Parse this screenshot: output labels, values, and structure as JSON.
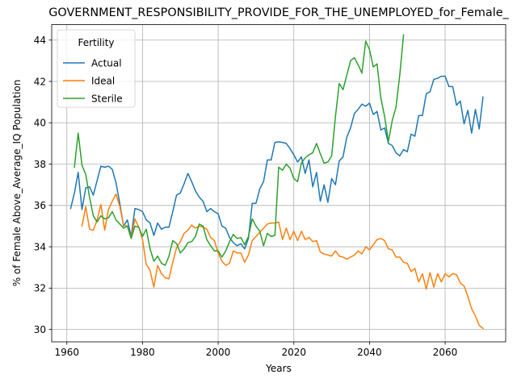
{
  "chart_data": {
    "type": "line",
    "title": "GOVERNMENT_RESPONSIBILITY_PROVIDE_FOR_THE_UNEMPLOYED_for_Female_",
    "xlabel": "Years",
    "ylabel": "% of Female Above_Average_IQ Population",
    "xlim": [
      1956,
      2076
    ],
    "ylim": [
      29.4,
      44.75
    ],
    "xticks": [
      1960,
      1980,
      2000,
      2020,
      2040,
      2060
    ],
    "yticks": [
      30,
      32,
      34,
      36,
      38,
      40,
      42,
      44
    ],
    "grid": true,
    "legend": {
      "title": "Fertility",
      "position": "upper-left"
    },
    "series": [
      {
        "name": "Actual",
        "color": "#1f77b4",
        "x": [
          1961,
          1962,
          1963,
          1964,
          1965,
          1966,
          1967,
          1968,
          1969,
          1970,
          1971,
          1972,
          1973,
          1974,
          1975,
          1976,
          1977,
          1978,
          1979,
          1980,
          1981,
          1982,
          1983,
          1984,
          1985,
          1986,
          1987,
          1988,
          1989,
          1990,
          1991,
          1992,
          1993,
          1994,
          1995,
          1996,
          1997,
          1998,
          1999,
          2000,
          2001,
          2002,
          2003,
          2004,
          2005,
          2006,
          2007,
          2008,
          2009,
          2010,
          2011,
          2012,
          2013,
          2014,
          2015,
          2016,
          2017,
          2018,
          2019,
          2020,
          2021,
          2022,
          2023,
          2024,
          2025,
          2026,
          2027,
          2028,
          2029,
          2030,
          2031,
          2032,
          2033,
          2034,
          2035,
          2036,
          2037,
          2038,
          2039,
          2040,
          2041,
          2042,
          2043,
          2044,
          2045,
          2046,
          2047,
          2048,
          2049,
          2050,
          2051,
          2052,
          2053,
          2054,
          2055,
          2056,
          2057,
          2058,
          2059,
          2060,
          2061,
          2062,
          2063,
          2064,
          2065,
          2066,
          2067,
          2068,
          2069,
          2070
        ],
        "values": [
          35.85,
          36.6,
          37.6,
          35.8,
          36.85,
          36.9,
          36.5,
          37.2,
          37.9,
          37.85,
          37.9,
          37.75,
          37.1,
          36.1,
          35.0,
          35.3,
          34.5,
          35.85,
          35.8,
          35.7,
          35.3,
          35.15,
          34.55,
          35.15,
          34.85,
          34.95,
          34.95,
          35.7,
          36.5,
          36.6,
          37.05,
          37.55,
          37.15,
          36.7,
          36.4,
          36.2,
          35.7,
          35.85,
          35.7,
          35.6,
          35.0,
          34.9,
          34.45,
          34.2,
          34.05,
          34.15,
          33.9,
          34.4,
          36.1,
          36.1,
          36.8,
          37.15,
          38.2,
          38.2,
          39.05,
          39.08,
          39.05,
          39.0,
          38.75,
          38.45,
          38.1,
          38.35,
          37.55,
          38.2,
          36.9,
          37.6,
          36.2,
          37.0,
          36.15,
          37.3,
          37.0,
          38.15,
          38.35,
          39.3,
          39.75,
          40.45,
          40.65,
          40.9,
          40.8,
          40.95,
          40.4,
          40.55,
          39.65,
          39.75,
          39.0,
          38.9,
          38.55,
          38.4,
          38.7,
          38.6,
          39.45,
          39.35,
          40.35,
          40.35,
          41.4,
          41.5,
          42.1,
          42.15,
          42.25,
          42.25,
          41.75,
          41.75,
          40.85,
          41.05,
          39.95,
          40.6,
          39.5,
          40.65,
          39.7,
          41.25
        ]
      },
      {
        "name": "Ideal",
        "color": "#ff7f0e",
        "x": [
          1964,
          1965,
          1966,
          1967,
          1968,
          1969,
          1970,
          1971,
          1972,
          1973,
          1974,
          1975,
          1976,
          1977,
          1978,
          1979,
          1980,
          1981,
          1982,
          1983,
          1984,
          1985,
          1986,
          1987,
          1988,
          1989,
          1990,
          1991,
          1992,
          1993,
          1994,
          1995,
          1996,
          1997,
          1998,
          1999,
          2000,
          2001,
          2002,
          2003,
          2004,
          2005,
          2006,
          2007,
          2008,
          2009,
          2010,
          2011,
          2012,
          2013,
          2014,
          2015,
          2016,
          2017,
          2018,
          2019,
          2020,
          2021,
          2022,
          2023,
          2024,
          2025,
          2026,
          2027,
          2028,
          2029,
          2030,
          2031,
          2032,
          2033,
          2034,
          2035,
          2036,
          2037,
          2038,
          2039,
          2040,
          2041,
          2042,
          2043,
          2044,
          2045,
          2046,
          2047,
          2048,
          2049,
          2050,
          2051,
          2052,
          2053,
          2054,
          2055,
          2056,
          2057,
          2058,
          2059,
          2060,
          2061,
          2062,
          2063,
          2064,
          2065,
          2066,
          2067,
          2068,
          2069,
          2070
        ],
        "values": [
          35.0,
          35.95,
          34.85,
          34.8,
          35.3,
          36.05,
          34.8,
          35.8,
          36.2,
          36.55,
          35.95,
          35.05,
          35.0,
          34.45,
          35.35,
          34.95,
          34.35,
          33.15,
          32.85,
          32.05,
          33.1,
          32.7,
          32.5,
          32.45,
          33.25,
          33.95,
          34.25,
          34.65,
          34.8,
          35.05,
          34.9,
          35.0,
          34.95,
          34.85,
          34.45,
          34.3,
          33.7,
          33.3,
          33.1,
          33.2,
          33.8,
          33.7,
          33.7,
          33.25,
          33.6,
          34.3,
          34.5,
          34.7,
          34.9,
          35.1,
          35.15,
          35.15,
          35.2,
          34.35,
          34.9,
          34.35,
          34.75,
          34.3,
          34.75,
          34.35,
          34.45,
          34.25,
          34.3,
          33.75,
          33.65,
          33.6,
          33.55,
          33.8,
          33.55,
          33.5,
          33.4,
          33.5,
          33.6,
          33.8,
          33.65,
          34.0,
          33.85,
          34.1,
          34.35,
          34.4,
          34.3,
          33.9,
          33.85,
          33.5,
          33.5,
          33.25,
          33.2,
          32.8,
          32.95,
          32.3,
          32.7,
          31.95,
          32.75,
          32.05,
          32.7,
          32.3,
          32.7,
          32.55,
          32.7,
          32.65,
          32.25,
          32.1,
          31.6,
          31.0,
          30.65,
          30.2,
          30.05
        ]
      },
      {
        "name": "Sterile",
        "color": "#2ca02c",
        "x": [
          1962,
          1963,
          1964,
          1965,
          1966,
          1967,
          1968,
          1969,
          1970,
          1971,
          1972,
          1973,
          1974,
          1975,
          1976,
          1977,
          1978,
          1979,
          1980,
          1981,
          1982,
          1983,
          1984,
          1985,
          1986,
          1987,
          1988,
          1989,
          1990,
          1991,
          1992,
          1993,
          1994,
          1995,
          1996,
          1997,
          1998,
          1999,
          2000,
          2001,
          2002,
          2003,
          2004,
          2005,
          2006,
          2007,
          2008,
          2009,
          2010,
          2011,
          2012,
          2013,
          2014,
          2015,
          2016,
          2017,
          2018,
          2019,
          2020,
          2021,
          2022,
          2023,
          2024,
          2025,
          2026,
          2027,
          2028,
          2029,
          2030,
          2031,
          2032,
          2033,
          2034,
          2035,
          2036,
          2037,
          2038,
          2039,
          2040,
          2041,
          2042,
          2043,
          2044,
          2045,
          2046,
          2047,
          2048,
          2049
        ],
        "values": [
          37.85,
          39.5,
          37.95,
          37.5,
          36.4,
          35.5,
          35.2,
          35.5,
          35.35,
          35.4,
          35.7,
          35.3,
          35.1,
          34.9,
          35.0,
          34.4,
          35.0,
          34.95,
          34.5,
          34.85,
          33.9,
          33.3,
          33.55,
          33.2,
          33.1,
          33.55,
          34.3,
          34.15,
          33.7,
          33.9,
          34.2,
          34.25,
          34.5,
          35.1,
          35.0,
          34.35,
          34.05,
          33.8,
          33.8,
          33.5,
          33.8,
          34.25,
          34.6,
          34.4,
          34.45,
          34.1,
          34.5,
          35.35,
          35.0,
          34.75,
          34.05,
          34.65,
          34.5,
          34.55,
          37.85,
          37.7,
          38.0,
          37.8,
          37.3,
          37.15,
          38.05,
          38.3,
          38.45,
          38.55,
          39.0,
          38.5,
          38.05,
          38.1,
          38.4,
          40.3,
          41.9,
          41.6,
          42.3,
          43.0,
          43.15,
          42.8,
          42.4,
          43.95,
          43.55,
          42.7,
          42.85,
          41.2,
          40.3,
          39.1,
          40.1,
          40.75,
          42.3,
          44.25
        ]
      }
    ]
  }
}
